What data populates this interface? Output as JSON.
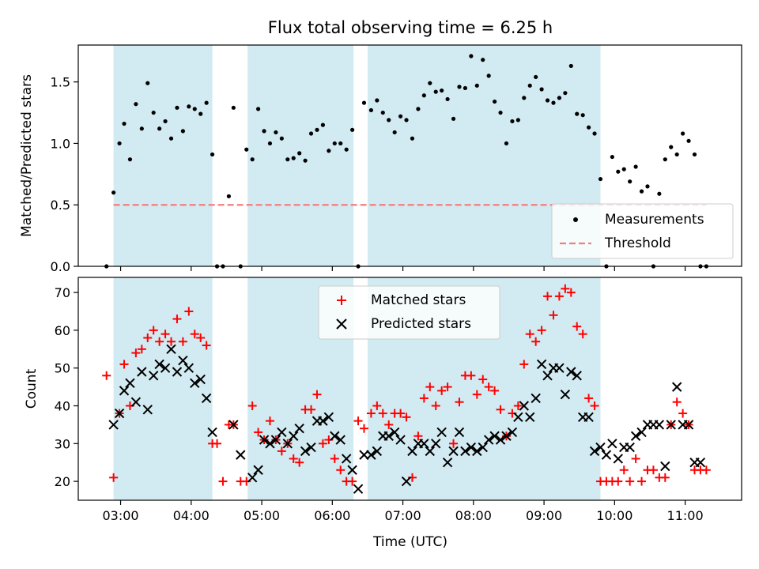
{
  "title": "Flux total observing time = 6.25 h",
  "xlabel": "Time (UTC)",
  "x_ticks": [
    "03:00",
    "04:00",
    "05:00",
    "06:00",
    "07:00",
    "08:00",
    "09:00",
    "10:00",
    "11:00"
  ],
  "colors": {
    "measurement": "#000000",
    "threshold": "#f08080",
    "matched": "#ff0000",
    "predicted": "#000000",
    "observing_window": "#add8e6"
  },
  "chart_data": [
    {
      "type": "scatter",
      "ylabel": "Matched/Predicted stars",
      "xlim": [
        "02:24",
        "11:48"
      ],
      "ylim": [
        0,
        1.8
      ],
      "y_ticks": [
        "0.0",
        "0.5",
        "1.0",
        "1.5"
      ],
      "legend_position": "lower-right",
      "observing_windows": [
        [
          "02:54",
          "04:18"
        ],
        [
          "04:48",
          "06:18"
        ],
        [
          "06:30",
          "09:48"
        ]
      ],
      "threshold": {
        "name": "Threshold",
        "value": 0.5,
        "x_range": [
          "02:54",
          "11:18"
        ],
        "style": "dashed"
      },
      "series": [
        {
          "name": "Measurements",
          "marker": "dot",
          "x": [
            "02:48",
            "02:54",
            "02:59",
            "03:03",
            "03:08",
            "03:13",
            "03:18",
            "03:23",
            "03:28",
            "03:33",
            "03:38",
            "03:43",
            "03:48",
            "03:53",
            "03:58",
            "04:03",
            "04:08",
            "04:13",
            "04:18",
            "04:22",
            "04:27",
            "04:32",
            "04:36",
            "04:42",
            "04:47",
            "04:52",
            "04:57",
            "05:02",
            "05:07",
            "05:12",
            "05:17",
            "05:22",
            "05:27",
            "05:32",
            "05:37",
            "05:42",
            "05:47",
            "05:52",
            "05:57",
            "06:02",
            "06:07",
            "06:12",
            "06:17",
            "06:22",
            "06:27",
            "06:33",
            "06:38",
            "06:43",
            "06:48",
            "06:53",
            "06:58",
            "07:03",
            "07:08",
            "07:13",
            "07:18",
            "07:23",
            "07:28",
            "07:33",
            "07:38",
            "07:43",
            "07:48",
            "07:53",
            "07:58",
            "08:03",
            "08:08",
            "08:13",
            "08:18",
            "08:23",
            "08:28",
            "08:33",
            "08:38",
            "08:43",
            "08:48",
            "08:53",
            "08:58",
            "09:03",
            "09:08",
            "09:13",
            "09:18",
            "09:23",
            "09:28",
            "09:33",
            "09:38",
            "09:43",
            "09:48",
            "09:53",
            "09:58",
            "10:03",
            "10:08",
            "10:13",
            "10:18",
            "10:23",
            "10:28",
            "10:33",
            "10:38",
            "10:43",
            "10:48",
            "10:53",
            "10:58",
            "11:03",
            "11:08",
            "11:13",
            "11:18"
          ],
          "y": [
            0.0,
            0.6,
            1.0,
            1.16,
            0.87,
            1.32,
            1.12,
            1.49,
            1.25,
            1.12,
            1.18,
            1.04,
            1.29,
            1.1,
            1.3,
            1.28,
            1.24,
            1.33,
            0.91,
            0.0,
            0.0,
            0.57,
            1.29,
            0.0,
            0.95,
            0.87,
            1.28,
            1.1,
            1.0,
            1.09,
            1.04,
            0.87,
            0.88,
            0.92,
            0.86,
            1.08,
            1.11,
            1.15,
            0.94,
            1.0,
            1.0,
            0.95,
            1.11,
            0.0,
            1.33,
            1.27,
            1.35,
            1.25,
            1.19,
            1.09,
            1.22,
            1.19,
            1.04,
            1.28,
            1.39,
            1.49,
            1.42,
            1.43,
            1.36,
            1.2,
            1.46,
            1.45,
            1.71,
            1.47,
            1.68,
            1.55,
            1.34,
            1.25,
            1.0,
            1.18,
            1.19,
            1.37,
            1.47,
            1.54,
            1.44,
            1.35,
            1.33,
            1.37,
            1.41,
            1.63,
            1.24,
            1.23,
            1.13,
            1.08,
            0.71,
            0.0,
            0.89,
            0.77,
            0.79,
            0.69,
            0.81,
            0.61,
            0.65,
            0.0,
            0.59,
            0.87,
            0.97,
            0.91,
            1.08,
            1.02,
            0.91,
            0.0,
            0.0
          ]
        }
      ]
    },
    {
      "type": "scatter",
      "ylabel": "Count",
      "xlim": [
        "02:24",
        "11:48"
      ],
      "ylim": [
        15,
        74
      ],
      "y_ticks": [
        "20",
        "30",
        "40",
        "50",
        "60",
        "70"
      ],
      "legend_position": "upper-center",
      "observing_windows": [
        [
          "02:54",
          "04:18"
        ],
        [
          "04:48",
          "06:18"
        ],
        [
          "06:30",
          "09:48"
        ]
      ],
      "series": [
        {
          "name": "Matched stars",
          "marker": "plus",
          "x": [
            "02:48",
            "02:54",
            "02:59",
            "03:03",
            "03:08",
            "03:13",
            "03:18",
            "03:23",
            "03:28",
            "03:33",
            "03:38",
            "03:43",
            "03:48",
            "03:53",
            "03:58",
            "04:03",
            "04:08",
            "04:13",
            "04:18",
            "04:22",
            "04:27",
            "04:32",
            "04:36",
            "04:42",
            "04:47",
            "04:52",
            "04:57",
            "05:02",
            "05:07",
            "05:12",
            "05:17",
            "05:22",
            "05:27",
            "05:32",
            "05:37",
            "05:42",
            "05:47",
            "05:52",
            "05:57",
            "06:02",
            "06:07",
            "06:12",
            "06:17",
            "06:22",
            "06:27",
            "06:33",
            "06:38",
            "06:43",
            "06:48",
            "06:53",
            "06:58",
            "07:03",
            "07:08",
            "07:13",
            "07:18",
            "07:23",
            "07:28",
            "07:33",
            "07:38",
            "07:43",
            "07:48",
            "07:53",
            "07:58",
            "08:03",
            "08:08",
            "08:13",
            "08:18",
            "08:23",
            "08:28",
            "08:33",
            "08:38",
            "08:43",
            "08:48",
            "08:53",
            "08:58",
            "09:03",
            "09:08",
            "09:13",
            "09:18",
            "09:23",
            "09:28",
            "09:33",
            "09:38",
            "09:43",
            "09:48",
            "09:53",
            "09:58",
            "10:03",
            "10:08",
            "10:13",
            "10:18",
            "10:23",
            "10:28",
            "10:33",
            "10:38",
            "10:43",
            "10:48",
            "10:53",
            "10:58",
            "11:03",
            "11:08",
            "11:13",
            "11:18"
          ],
          "y": [
            48,
            21,
            38,
            51,
            40,
            54,
            55,
            58,
            60,
            57,
            59,
            57,
            63,
            57,
            65,
            59,
            58,
            56,
            30,
            30,
            20,
            35,
            35,
            20,
            20,
            40,
            33,
            31,
            36,
            31,
            28,
            30,
            26,
            25,
            39,
            39,
            43,
            30,
            31,
            26,
            23,
            20,
            20,
            36,
            34,
            38,
            40,
            38,
            35,
            38,
            38,
            37,
            21,
            32,
            42,
            45,
            40,
            44,
            45,
            30,
            41,
            48,
            48,
            43,
            47,
            45,
            44,
            39,
            32,
            38,
            40,
            51,
            59,
            57,
            60,
            69,
            64,
            69,
            71,
            70,
            61,
            59,
            42,
            40,
            20,
            20,
            20,
            20,
            23,
            20,
            26,
            20,
            23,
            23,
            21,
            21,
            35,
            41,
            38,
            35,
            23,
            23,
            23
          ]
        },
        {
          "name": "Predicted stars",
          "marker": "x",
          "x": [
            "02:54",
            "02:59",
            "03:03",
            "03:08",
            "03:13",
            "03:18",
            "03:23",
            "03:28",
            "03:33",
            "03:38",
            "03:43",
            "03:48",
            "03:53",
            "03:58",
            "04:03",
            "04:08",
            "04:13",
            "04:18",
            "04:36",
            "04:42",
            "04:52",
            "04:57",
            "05:02",
            "05:07",
            "05:12",
            "05:17",
            "05:22",
            "05:27",
            "05:32",
            "05:37",
            "05:42",
            "05:47",
            "05:52",
            "05:57",
            "06:02",
            "06:07",
            "06:12",
            "06:17",
            "06:22",
            "06:27",
            "06:33",
            "06:38",
            "06:43",
            "06:48",
            "06:53",
            "06:58",
            "07:03",
            "07:08",
            "07:13",
            "07:18",
            "07:23",
            "07:28",
            "07:33",
            "07:38",
            "07:43",
            "07:48",
            "07:53",
            "07:58",
            "08:03",
            "08:08",
            "08:13",
            "08:18",
            "08:23",
            "08:28",
            "08:33",
            "08:38",
            "08:43",
            "08:48",
            "08:53",
            "08:58",
            "09:03",
            "09:08",
            "09:13",
            "09:18",
            "09:23",
            "09:28",
            "09:33",
            "09:38",
            "09:43",
            "09:48",
            "09:53",
            "09:58",
            "10:03",
            "10:08",
            "10:13",
            "10:18",
            "10:23",
            "10:28",
            "10:33",
            "10:38",
            "10:43",
            "10:48",
            "10:53",
            "10:58",
            "11:03",
            "11:08",
            "11:13"
          ],
          "y": [
            35,
            38,
            44,
            46,
            41,
            49,
            39,
            48,
            51,
            50,
            55,
            49,
            52,
            50,
            46,
            47,
            42,
            33,
            35,
            27,
            21,
            23,
            31,
            30,
            31,
            33,
            30,
            32,
            34,
            28,
            29,
            36,
            36,
            37,
            32,
            31,
            26,
            23,
            18,
            27,
            27,
            28,
            32,
            32,
            33,
            31,
            20,
            28,
            30,
            30,
            28,
            30,
            33,
            25,
            28,
            33,
            28,
            29,
            28,
            29,
            31,
            32,
            31,
            32,
            33,
            37,
            40,
            37,
            42,
            51,
            48,
            50,
            50,
            43,
            49,
            48,
            37,
            37,
            28,
            29,
            27,
            30,
            26,
            29,
            29,
            32,
            33,
            35,
            35,
            35,
            24,
            35,
            45,
            35,
            35,
            25,
            25
          ]
        }
      ]
    }
  ]
}
